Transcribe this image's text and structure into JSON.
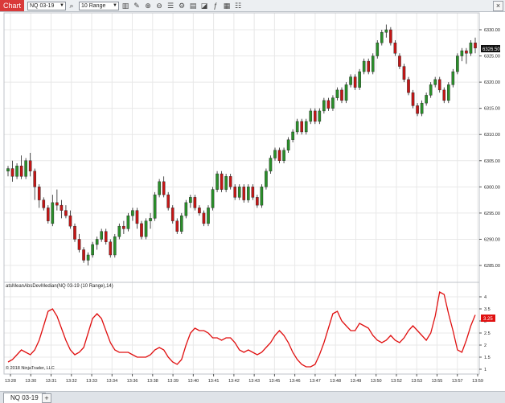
{
  "toolbar": {
    "title": "Chart",
    "instrument": "NQ 03-19",
    "period": "10 Range",
    "close_label": "×"
  },
  "icons": [
    "search-icon",
    "bars-icon",
    "pencil-icon",
    "zoom-in-icon",
    "zoom-out-icon",
    "properties-icon",
    "strategy-icon",
    "chart-trader-icon",
    "drawing-objects-icon",
    "indicators-icon"
  ],
  "colors": {
    "up": "#2a8f2a",
    "down": "#c41616",
    "indicator": "#e01010",
    "grid": "#e8e8e8"
  },
  "price_axis": {
    "labels": [
      "6285.00",
      "6290.00",
      "6295.00",
      "6300.00",
      "6305.00",
      "6310.00",
      "6315.00",
      "6320.00",
      "6325.00",
      "6330.00"
    ],
    "current_price": "6326.50"
  },
  "indicator": {
    "title": "atsMeanAbsDevMedian(NQ 03-19 (10 Range),14)",
    "axis_labels": [
      "1",
      "1.5",
      "2",
      "2.5",
      "3",
      "3.5",
      "4"
    ],
    "current_value": "3.25"
  },
  "time_axis": [
    "13:28",
    "13:30",
    "13:31",
    "13:32",
    "13:33",
    "13:34",
    "13:36",
    "13:38",
    "13:39",
    "13:40",
    "13:41",
    "13:42",
    "13:43",
    "13:45",
    "13:46",
    "13:47",
    "13:48",
    "13:49",
    "13:50",
    "13:52",
    "13:53",
    "13:55",
    "13:57",
    "13:59"
  ],
  "copyright": "© 2018 NinjaTrader, LLC",
  "bottom_tabs": {
    "instrument_tab": "NQ 03-19",
    "add_tab": "+"
  },
  "chart_data": {
    "type": "candlestick",
    "ohlc": [
      [
        6303.0,
        6304.0,
        6302.0,
        6303.5
      ],
      [
        6303.5,
        6305.0,
        6301.0,
        6302.0
      ],
      [
        6302.0,
        6304.5,
        6301.5,
        6304.0
      ],
      [
        6304.0,
        6306.0,
        6301.5,
        6302.0
      ],
      [
        6302.0,
        6305.5,
        6301.5,
        6305.0
      ],
      [
        6305.0,
        6306.5,
        6302.0,
        6303.0
      ],
      [
        6303.0,
        6303.5,
        6297.5,
        6300.0
      ],
      [
        6300.0,
        6300.5,
        6296.0,
        6297.5
      ],
      [
        6297.5,
        6298.0,
        6295.5,
        6296.0
      ],
      [
        6296.0,
        6296.5,
        6293.0,
        6293.5
      ],
      [
        6293.0,
        6298.5,
        6292.5,
        6297.0
      ],
      [
        6297.0,
        6299.5,
        6295.5,
        6296.5
      ],
      [
        6296.5,
        6297.5,
        6294.0,
        6295.5
      ],
      [
        6295.5,
        6296.5,
        6294.0,
        6294.5
      ],
      [
        6294.5,
        6295.5,
        6292.0,
        6292.5
      ],
      [
        6292.5,
        6293.0,
        6289.5,
        6290.0
      ],
      [
        6290.0,
        6291.0,
        6287.5,
        6288.0
      ],
      [
        6288.0,
        6288.5,
        6285.5,
        6286.0
      ],
      [
        6286.0,
        6287.5,
        6285.0,
        6287.0
      ],
      [
        6287.0,
        6289.5,
        6286.5,
        6289.0
      ],
      [
        6289.0,
        6290.5,
        6288.0,
        6290.0
      ],
      [
        6290.0,
        6292.0,
        6289.5,
        6291.5
      ],
      [
        6291.5,
        6292.0,
        6289.0,
        6289.5
      ],
      [
        6289.5,
        6290.0,
        6286.5,
        6287.0
      ],
      [
        6287.0,
        6291.0,
        6286.5,
        6290.5
      ],
      [
        6290.5,
        6293.0,
        6290.0,
        6292.5
      ],
      [
        6292.5,
        6293.5,
        6291.0,
        6292.0
      ],
      [
        6292.0,
        6295.0,
        6291.5,
        6294.5
      ],
      [
        6294.5,
        6296.0,
        6293.5,
        6295.5
      ],
      [
        6295.5,
        6296.0,
        6292.0,
        6293.0
      ],
      [
        6293.0,
        6293.5,
        6290.0,
        6290.5
      ],
      [
        6290.5,
        6294.0,
        6290.0,
        6293.5
      ],
      [
        6293.5,
        6295.0,
        6292.0,
        6294.0
      ],
      [
        6294.0,
        6299.0,
        6293.5,
        6298.5
      ],
      [
        6298.5,
        6301.5,
        6298.0,
        6301.0
      ],
      [
        6301.0,
        6302.0,
        6298.0,
        6298.5
      ],
      [
        6298.5,
        6299.0,
        6295.5,
        6296.0
      ],
      [
        6296.0,
        6296.5,
        6293.0,
        6293.5
      ],
      [
        6293.5,
        6294.0,
        6291.0,
        6291.5
      ],
      [
        6291.5,
        6295.0,
        6291.0,
        6294.5
      ],
      [
        6294.5,
        6297.5,
        6294.0,
        6297.0
      ],
      [
        6297.0,
        6298.5,
        6296.0,
        6298.0
      ],
      [
        6298.0,
        6298.5,
        6295.5,
        6296.0
      ],
      [
        6296.0,
        6296.5,
        6294.5,
        6295.0
      ],
      [
        6295.0,
        6295.5,
        6292.5,
        6293.0
      ],
      [
        6293.0,
        6296.5,
        6292.5,
        6296.0
      ],
      [
        6296.0,
        6300.0,
        6295.5,
        6299.5
      ],
      [
        6299.5,
        6303.0,
        6299.0,
        6302.5
      ],
      [
        6302.5,
        6303.0,
        6299.0,
        6299.5
      ],
      [
        6299.5,
        6302.5,
        6299.0,
        6302.0
      ],
      [
        6302.0,
        6302.5,
        6299.5,
        6300.0
      ],
      [
        6300.0,
        6300.5,
        6297.5,
        6298.0
      ],
      [
        6298.0,
        6300.5,
        6297.5,
        6300.0
      ],
      [
        6300.0,
        6300.5,
        6297.0,
        6297.5
      ],
      [
        6297.5,
        6300.5,
        6297.0,
        6300.0
      ],
      [
        6300.0,
        6300.5,
        6297.5,
        6298.0
      ],
      [
        6298.0,
        6298.5,
        6296.0,
        6296.5
      ],
      [
        6296.5,
        6300.5,
        6296.0,
        6300.0
      ],
      [
        6300.0,
        6303.5,
        6299.5,
        6303.0
      ],
      [
        6303.0,
        6306.0,
        6302.5,
        6305.5
      ],
      [
        6305.5,
        6307.5,
        6305.0,
        6307.0
      ],
      [
        6307.0,
        6307.5,
        6304.5,
        6305.0
      ],
      [
        6305.0,
        6307.5,
        6304.5,
        6307.0
      ],
      [
        6307.0,
        6309.5,
        6306.5,
        6309.0
      ],
      [
        6309.0,
        6311.0,
        6308.5,
        6310.5
      ],
      [
        6310.5,
        6313.0,
        6310.0,
        6312.5
      ],
      [
        6312.5,
        6313.0,
        6310.0,
        6310.5
      ],
      [
        6310.5,
        6313.0,
        6310.0,
        6312.5
      ],
      [
        6312.5,
        6315.0,
        6312.0,
        6314.5
      ],
      [
        6314.5,
        6315.0,
        6312.0,
        6312.5
      ],
      [
        6312.5,
        6315.0,
        6312.0,
        6314.5
      ],
      [
        6314.5,
        6317.0,
        6314.0,
        6316.5
      ],
      [
        6316.5,
        6317.0,
        6314.5,
        6315.0
      ],
      [
        6315.0,
        6317.5,
        6314.5,
        6317.0
      ],
      [
        6317.0,
        6319.0,
        6316.5,
        6318.5
      ],
      [
        6318.5,
        6319.0,
        6316.0,
        6316.5
      ],
      [
        6316.5,
        6320.0,
        6316.0,
        6319.5
      ],
      [
        6319.5,
        6321.5,
        6319.0,
        6321.0
      ],
      [
        6321.0,
        6321.5,
        6318.5,
        6319.0
      ],
      [
        6319.0,
        6322.5,
        6318.5,
        6322.0
      ],
      [
        6322.0,
        6324.5,
        6321.5,
        6324.0
      ],
      [
        6324.0,
        6324.5,
        6321.5,
        6322.0
      ],
      [
        6322.0,
        6325.5,
        6321.5,
        6325.0
      ],
      [
        6325.0,
        6328.0,
        6324.5,
        6327.5
      ],
      [
        6327.5,
        6330.0,
        6327.0,
        6329.5
      ],
      [
        6329.5,
        6331.0,
        6328.5,
        6330.0
      ],
      [
        6330.0,
        6330.5,
        6327.0,
        6327.5
      ],
      [
        6327.5,
        6328.0,
        6325.0,
        6325.5
      ],
      [
        6325.0,
        6325.5,
        6322.5,
        6323.0
      ],
      [
        6323.0,
        6323.5,
        6320.0,
        6320.5
      ],
      [
        6320.5,
        6321.0,
        6317.5,
        6318.0
      ],
      [
        6318.0,
        6318.5,
        6315.0,
        6315.5
      ],
      [
        6315.5,
        6316.0,
        6313.5,
        6314.0
      ],
      [
        6314.0,
        6316.5,
        6313.5,
        6316.0
      ],
      [
        6316.0,
        6318.0,
        6315.5,
        6317.5
      ],
      [
        6317.5,
        6320.0,
        6317.0,
        6319.5
      ],
      [
        6319.5,
        6321.0,
        6319.0,
        6320.5
      ],
      [
        6320.5,
        6321.0,
        6318.0,
        6318.5
      ],
      [
        6318.5,
        6319.0,
        6316.0,
        6316.5
      ],
      [
        6316.5,
        6320.0,
        6316.0,
        6319.5
      ],
      [
        6319.5,
        6322.5,
        6319.0,
        6322.0
      ],
      [
        6322.0,
        6325.5,
        6321.5,
        6325.0
      ],
      [
        6325.0,
        6326.5,
        6324.0,
        6326.0
      ],
      [
        6326.0,
        6326.5,
        6323.5,
        6325.5
      ],
      [
        6325.5,
        6328.0,
        6325.0,
        6327.5
      ],
      [
        6327.5,
        6328.5,
        6325.5,
        6326.5
      ]
    ],
    "indicator_values": [
      1.3,
      1.4,
      1.6,
      1.8,
      1.7,
      1.6,
      1.8,
      2.2,
      2.8,
      3.4,
      3.5,
      3.2,
      2.7,
      2.2,
      1.8,
      1.6,
      1.7,
      1.9,
      2.5,
      3.1,
      3.3,
      3.1,
      2.6,
      2.1,
      1.8,
      1.7,
      1.7,
      1.7,
      1.6,
      1.5,
      1.5,
      1.5,
      1.6,
      1.8,
      1.9,
      1.8,
      1.5,
      1.3,
      1.2,
      1.4,
      2.0,
      2.5,
      2.7,
      2.6,
      2.6,
      2.5,
      2.3,
      2.3,
      2.2,
      2.3,
      2.3,
      2.1,
      1.8,
      1.7,
      1.8,
      1.7,
      1.6,
      1.7,
      1.9,
      2.1,
      2.4,
      2.6,
      2.4,
      2.1,
      1.7,
      1.4,
      1.2,
      1.1,
      1.1,
      1.2,
      1.6,
      2.1,
      2.7,
      3.3,
      3.4,
      3.0,
      2.8,
      2.6,
      2.6,
      2.9,
      2.8,
      2.7,
      2.4,
      2.2,
      2.1,
      2.2,
      2.4,
      2.2,
      2.1,
      2.3,
      2.6,
      2.8,
      2.6,
      2.4,
      2.2,
      2.5,
      3.2,
      4.2,
      4.1,
      3.3,
      2.6,
      1.8,
      1.7,
      2.2,
      2.8,
      3.25
    ]
  }
}
